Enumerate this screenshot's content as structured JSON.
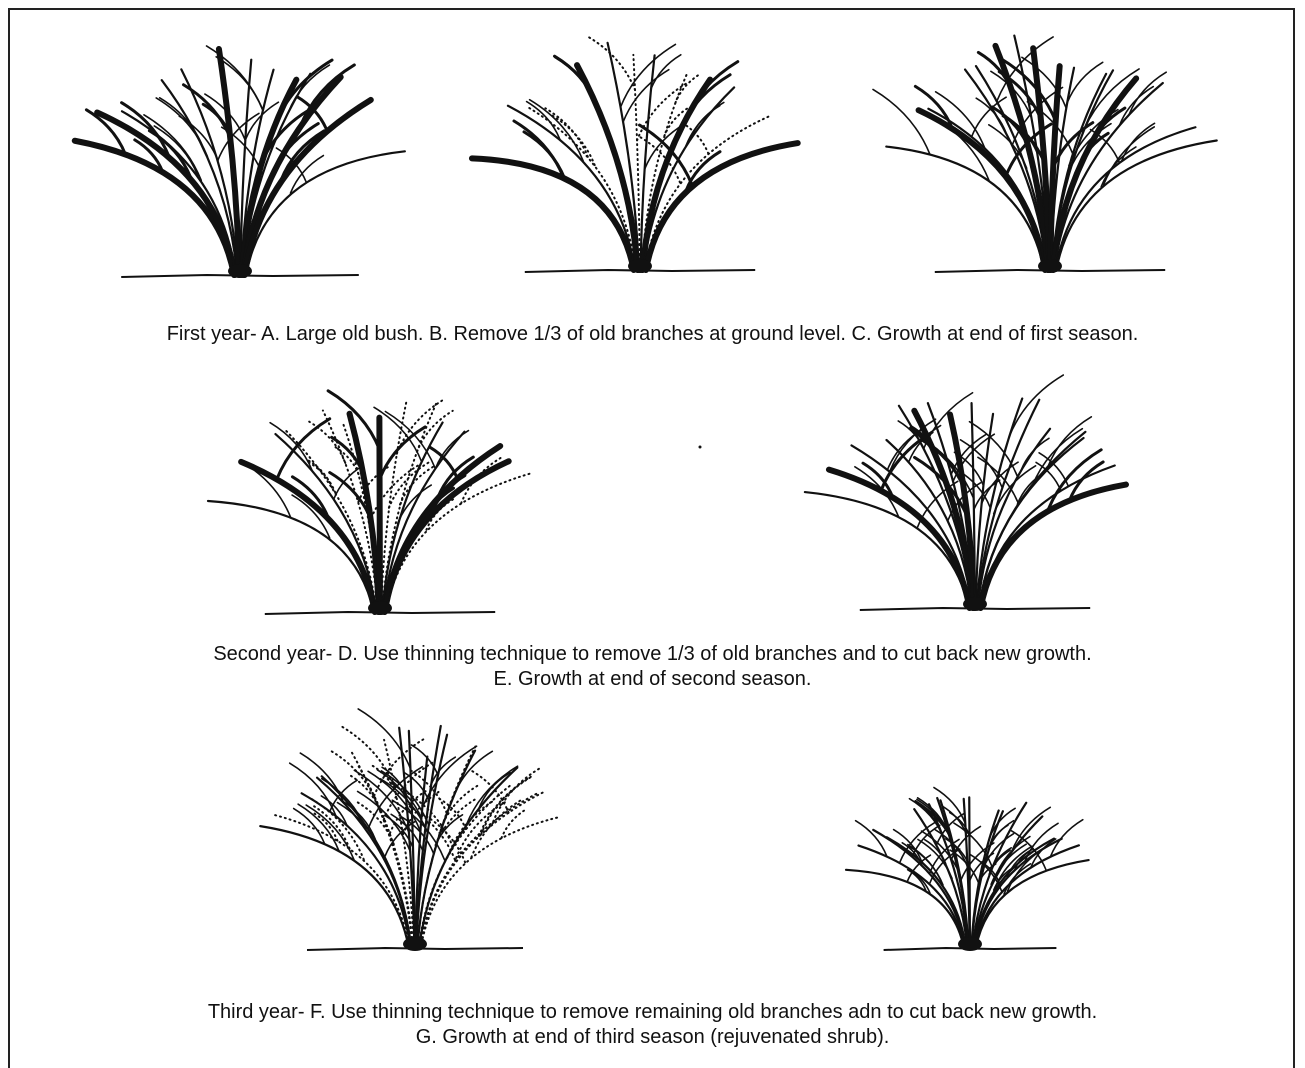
{
  "captions": {
    "first_year": "First year- A. Large old bush.  B.  Remove 1/3 of old branches at ground level.  C. Growth at end of first season.",
    "second_year": [
      "Second year- D. Use thinning technique to remove 1/3 of old branches and to cut back new growth.",
      "E. Growth at end of second season."
    ],
    "third_year": [
      "Third year- F.  Use thinning technique to remove remaining old branches adn to cut back new growth.",
      "G. Growth at end of third season (rejuvenated shrub)."
    ]
  }
}
